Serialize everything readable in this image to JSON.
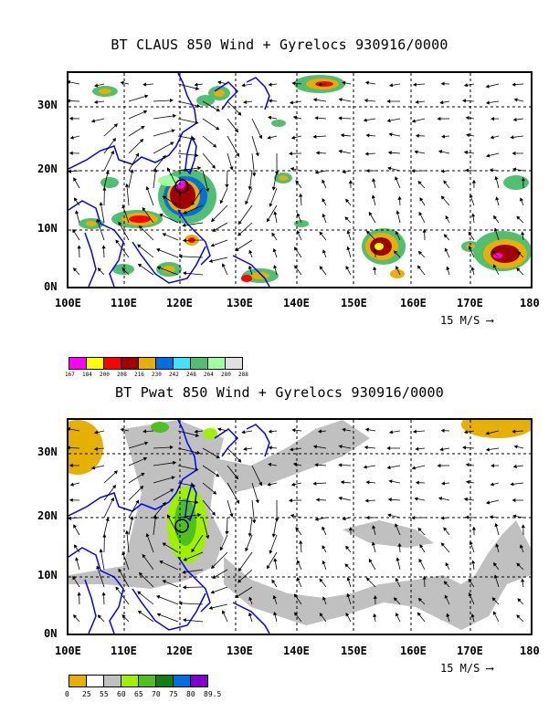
{
  "panel1": {
    "title": "BT CLAUS 850 Wind + Gyrelocs 930916/0000",
    "colorbar": {
      "colors": [
        "#ff00ff",
        "#ffff00",
        "#ff0000",
        "#a00000",
        "#e6b000",
        "#0070e0",
        "#40e0ff",
        "#50c070",
        "#a0ffa0",
        "#e0e0e0"
      ],
      "labels": [
        "167",
        "184",
        "200",
        "208",
        "216",
        "230",
        "242",
        "248",
        "264",
        "280",
        "288"
      ]
    }
  },
  "panel2": {
    "title": "BT Pwat 850 Wind + Gyrelocs 930916/0000",
    "colorbar": {
      "colors": [
        "#e6b000",
        "#ffffff",
        "#c0c0c0",
        "#a0f000",
        "#50c020",
        "#108010",
        "#0070e0",
        "#8000d0"
      ],
      "labels": [
        "0",
        "25",
        "55",
        "60",
        "65",
        "70",
        "75",
        "80",
        "89.5"
      ]
    }
  },
  "axes": {
    "lon_ticks": [
      "100E",
      "110E",
      "120E",
      "130E",
      "140E",
      "150E",
      "160E",
      "170E",
      "180"
    ],
    "lat_ticks": [
      "30N",
      "20N",
      "10N",
      "0N"
    ],
    "vector_scale_label": "15 M/S"
  },
  "colors": {
    "coastline": "#0000ff",
    "grid": "#000000"
  }
}
